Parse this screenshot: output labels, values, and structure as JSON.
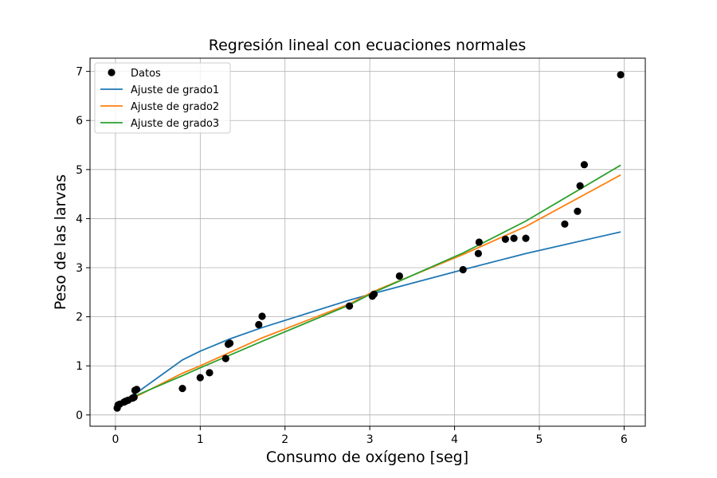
{
  "chart_data": {
    "type": "scatter",
    "title": "Regresión lineal con ecuaciones normales",
    "xlabel": "Consumo de oxígeno [seg]",
    "ylabel": "Peso de las larvas",
    "xlim": [
      -0.3,
      6.25
    ],
    "ylim": [
      -0.23,
      7.27
    ],
    "xticks": [
      0,
      1,
      2,
      3,
      4,
      5,
      6
    ],
    "yticks": [
      0,
      1,
      2,
      3,
      4,
      5,
      6,
      7
    ],
    "grid": true,
    "legend_position": "top-left",
    "points": {
      "name": "Datos",
      "color": "#000000",
      "x": [
        0.02,
        0.03,
        0.05,
        0.1,
        0.12,
        0.15,
        0.2,
        0.22,
        0.23,
        0.25,
        0.79,
        1.0,
        1.11,
        1.3,
        1.33,
        1.35,
        1.69,
        1.73,
        2.76,
        3.03,
        3.05,
        3.35,
        4.1,
        4.28,
        4.29,
        4.6,
        4.7,
        4.84,
        5.3,
        5.45,
        5.48,
        5.53,
        5.96
      ],
      "y": [
        0.14,
        0.2,
        0.22,
        0.26,
        0.28,
        0.3,
        0.34,
        0.36,
        0.5,
        0.52,
        0.54,
        0.76,
        0.86,
        1.15,
        1.44,
        1.46,
        1.84,
        2.01,
        2.22,
        2.42,
        2.46,
        2.83,
        2.96,
        3.29,
        3.52,
        3.58,
        3.6,
        3.6,
        3.89,
        4.15,
        4.67,
        5.1,
        6.93
      ]
    },
    "series": [
      {
        "name": "Ajuste de grado1",
        "color": "#1f77b4",
        "x": [
          0.02,
          0.25,
          0.79,
          1.0,
          1.35,
          1.73,
          2.76,
          3.05,
          4.1,
          4.84,
          5.96
        ],
        "y": [
          0.17,
          0.45,
          1.12,
          1.3,
          1.55,
          1.78,
          2.34,
          2.48,
          2.96,
          3.29,
          3.73
        ]
      },
      {
        "name": "Ajuste de grado2",
        "color": "#ff7f0e",
        "x": [
          0.02,
          0.25,
          0.79,
          1.0,
          1.73,
          2.76,
          3.05,
          4.1,
          4.84,
          5.96
        ],
        "y": [
          0.2,
          0.38,
          0.85,
          1.0,
          1.57,
          2.26,
          2.52,
          3.27,
          3.84,
          4.89
        ]
      },
      {
        "name": "Ajuste de grado3",
        "color": "#2ca02c",
        "x": [
          0.02,
          0.25,
          0.79,
          1.0,
          1.73,
          2.76,
          3.05,
          4.1,
          4.84,
          5.96
        ],
        "y": [
          0.25,
          0.4,
          0.8,
          0.96,
          1.5,
          2.24,
          2.5,
          3.3,
          3.95,
          5.09
        ]
      }
    ]
  }
}
